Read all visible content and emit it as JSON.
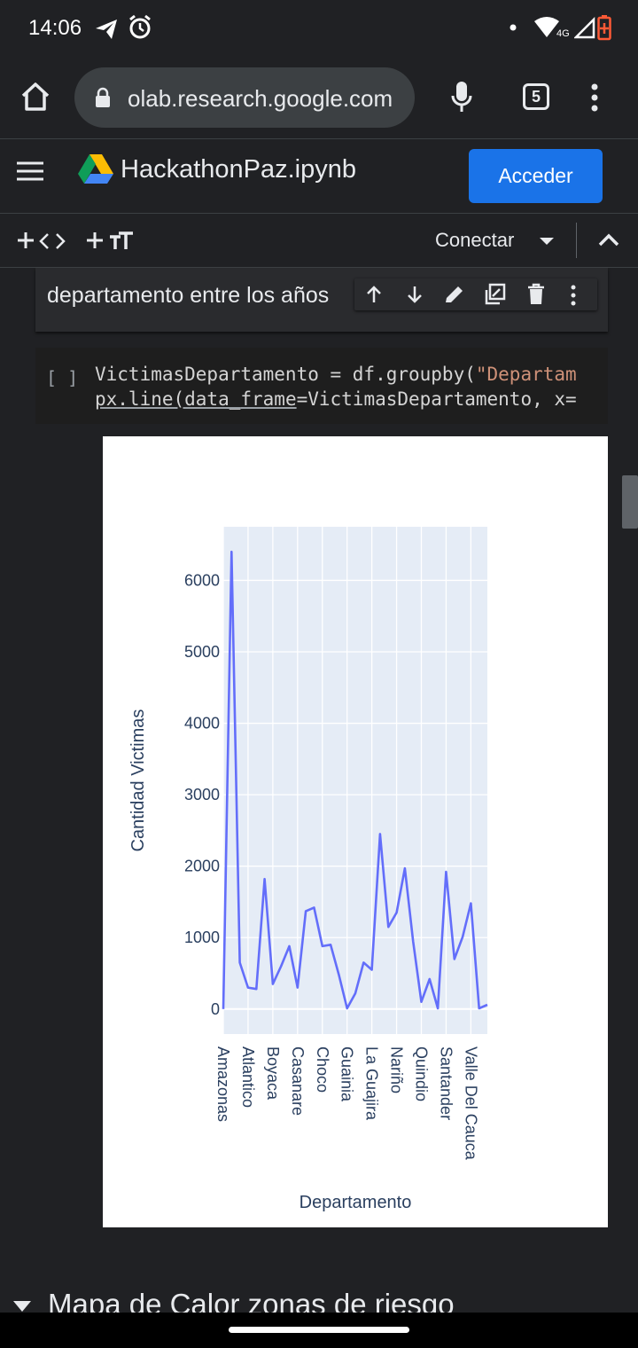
{
  "status_bar": {
    "time": "14:06",
    "network": "4G"
  },
  "browser": {
    "url": "olab.research.google.com",
    "tab_count": "5"
  },
  "colab": {
    "title": "HackathonPaz.ipynb",
    "signin_label": "Acceder"
  },
  "toolbar": {
    "connect_label": "Conectar"
  },
  "text_cell": {
    "text": "departamento entre los años"
  },
  "code_cell": {
    "bracket": "[ ]",
    "line1_a": "VictimasDepartamento = df.groupby(",
    "line1_b": "\"Departam",
    "line2_a": "px.line(data_",
    "line2_b": "frame",
    "line2_c": "=VictimasDepartamento, x="
  },
  "section": {
    "title": "Mapa de Calor zonas de riesgo"
  },
  "chart_data": {
    "type": "line",
    "xlabel": "Departamento",
    "ylabel": "Cantidad Victimas",
    "y_ticks": [
      0,
      1000,
      2000,
      3000,
      4000,
      5000,
      6000
    ],
    "x_tick_labels": [
      "Amazonas",
      "Atlantico",
      "Boyaca",
      "Casanare",
      "Choco",
      "Guainia",
      "La Guajira",
      "Nariño",
      "Quindio",
      "Santander",
      "Valle Del Cauca"
    ],
    "ylim": [
      -350,
      6750
    ],
    "line_color": "#636efa",
    "plot_bg": "#e5ecf6",
    "values": [
      0,
      6400,
      650,
      300,
      280,
      1820,
      350,
      600,
      880,
      300,
      1370,
      1420,
      880,
      900,
      480,
      10,
      220,
      650,
      550,
      2450,
      1150,
      1350,
      1970,
      950,
      100,
      420,
      10,
      1920,
      700,
      1010,
      1480,
      10,
      60
    ]
  }
}
